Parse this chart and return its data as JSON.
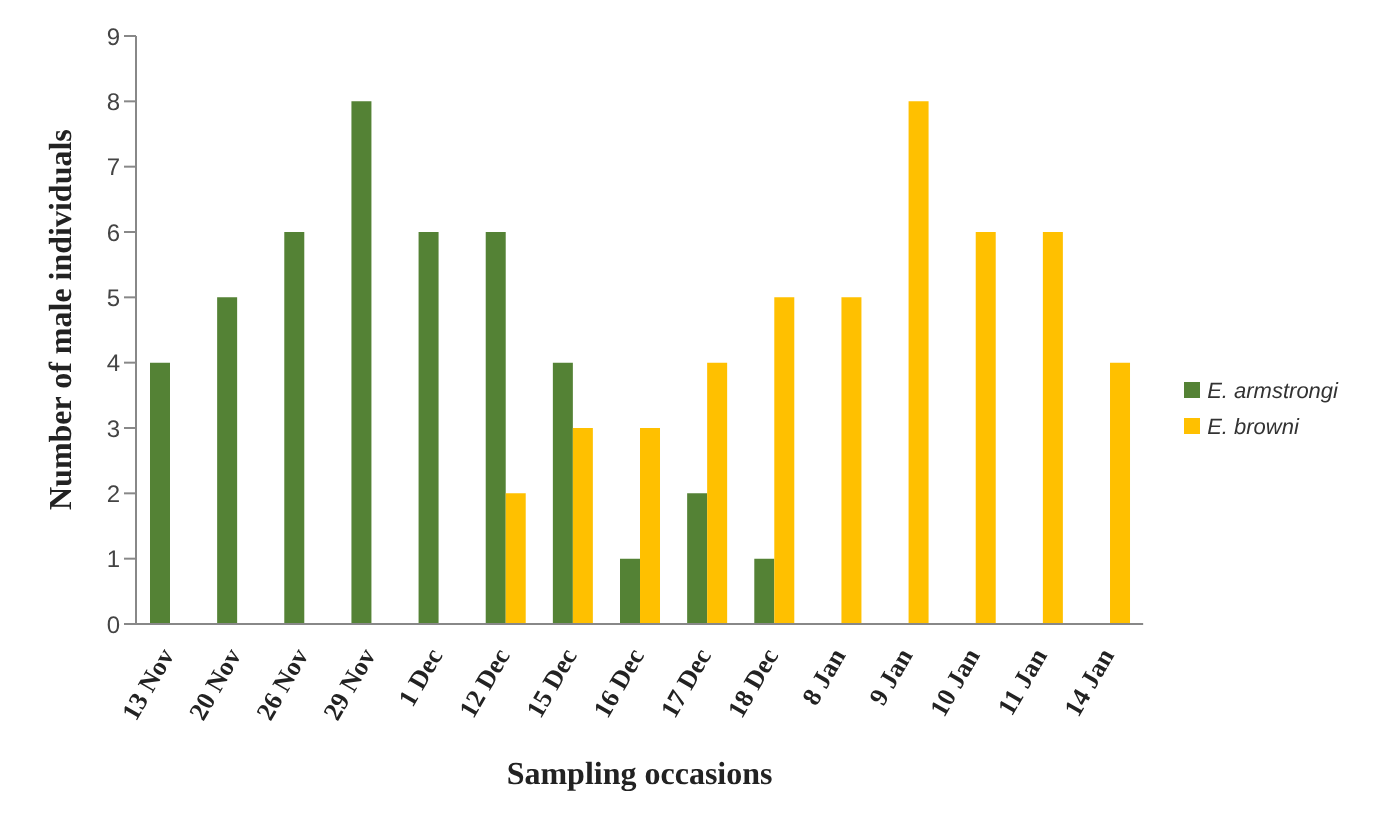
{
  "chart_data": {
    "type": "bar",
    "xlabel": "Sampling occasions",
    "ylabel": "Number of male individuals",
    "categories": [
      "13 Nov",
      "20 Nov",
      "26 Nov",
      "29 Nov",
      "1 Dec",
      "12 Dec",
      "15 Dec",
      "16 Dec",
      "17 Dec",
      "18 Dec",
      "8 Jan",
      "9 Jan",
      "10 Jan",
      "11 Jan",
      "14 Jan"
    ],
    "series": [
      {
        "name": "E. armstrongi",
        "color": "#548235",
        "values": [
          4,
          5,
          6,
          8,
          6,
          6,
          4,
          1,
          2,
          1,
          null,
          null,
          null,
          null,
          null
        ]
      },
      {
        "name": "E. browni",
        "color": "#ffc000",
        "values": [
          null,
          null,
          null,
          null,
          null,
          2,
          3,
          3,
          4,
          5,
          5,
          8,
          6,
          6,
          4
        ]
      }
    ],
    "ylim": [
      0,
      9
    ],
    "yticks": [
      0,
      1,
      2,
      3,
      4,
      5,
      6,
      7,
      8,
      9
    ],
    "grid": false,
    "legend": "right"
  }
}
